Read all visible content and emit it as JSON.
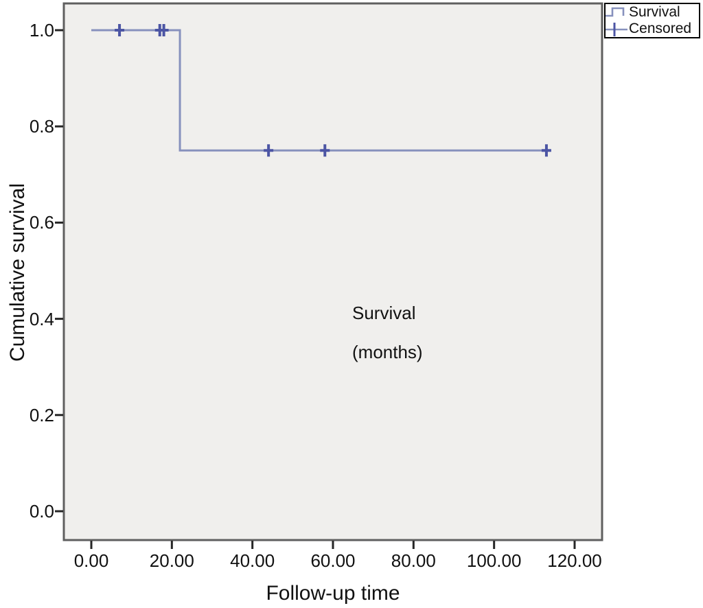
{
  "figure": {
    "background": "#ffffff",
    "text_color": "#111111",
    "frame_color": "#5f5f5f"
  },
  "legend": {
    "position": "top-right",
    "entries": [
      {
        "label": "Survival",
        "marker": "step-line-icon"
      },
      {
        "label": "Censored",
        "marker": "plus-marker-icon"
      }
    ]
  },
  "annotation": {
    "line1": "Survival",
    "line2": "(months)"
  },
  "chart_data": {
    "type": "line",
    "subtype": "kaplan-meier-step-function",
    "title": "",
    "xlabel": "Follow-up time",
    "ylabel": "Cumulative survival",
    "xlim": [
      0,
      120
    ],
    "ylim": [
      0.0,
      1.0
    ],
    "grid": false,
    "legend_position": "top-right",
    "plot_background": "#f0efed",
    "line_color": "#8791bd",
    "censor_color": "#4c55a4",
    "x_ticks": [
      {
        "value": 0,
        "label": "0.00"
      },
      {
        "value": 20,
        "label": "20.00"
      },
      {
        "value": 40,
        "label": "40.00"
      },
      {
        "value": 60,
        "label": "60.00"
      },
      {
        "value": 80,
        "label": "80.00"
      },
      {
        "value": 100,
        "label": "100.00"
      },
      {
        "value": 120,
        "label": "120.00"
      }
    ],
    "y_ticks": [
      {
        "value": 0.0,
        "label": "0.0"
      },
      {
        "value": 0.2,
        "label": "0.2"
      },
      {
        "value": 0.4,
        "label": "0.4"
      },
      {
        "value": 0.6,
        "label": "0.6"
      },
      {
        "value": 0.8,
        "label": "0.8"
      },
      {
        "value": 1.0,
        "label": "1.0"
      }
    ],
    "series": [
      {
        "name": "Survival",
        "type": "step",
        "points": [
          [
            0,
            1.0
          ],
          [
            22,
            1.0
          ],
          [
            22,
            0.75
          ],
          [
            113,
            0.75
          ]
        ]
      }
    ],
    "censored_points": [
      [
        7,
        1.0
      ],
      [
        17,
        1.0
      ],
      [
        18,
        1.0
      ],
      [
        44,
        0.75
      ],
      [
        58,
        0.75
      ],
      [
        113,
        0.75
      ]
    ]
  }
}
